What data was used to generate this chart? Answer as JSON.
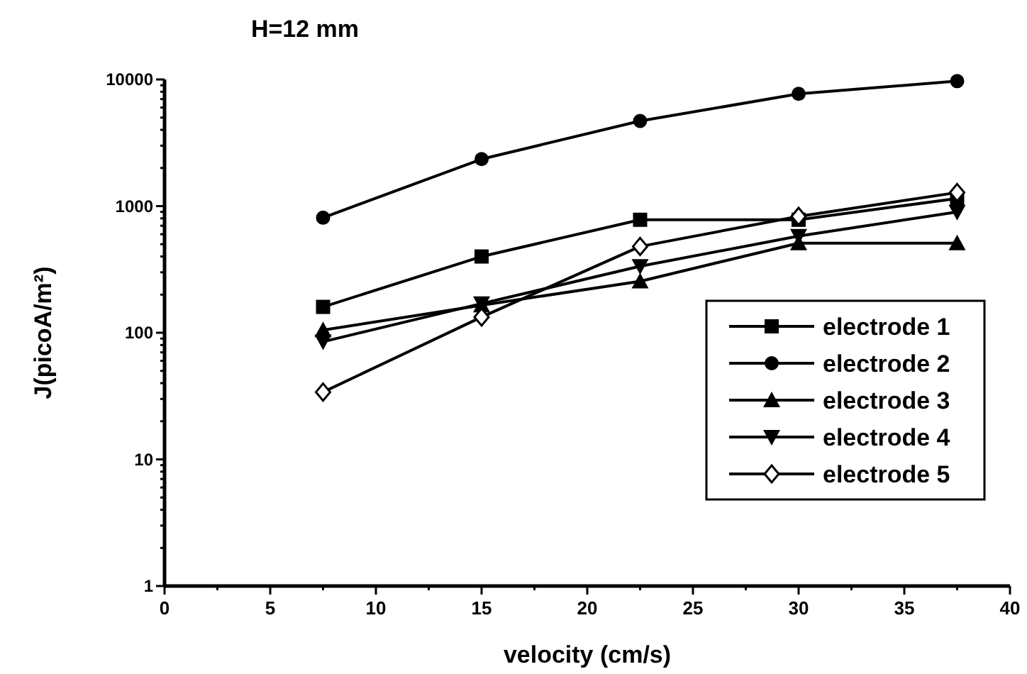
{
  "chart_data": {
    "type": "line",
    "title": "H=12 mm",
    "xlabel": "velocity (cm/s)",
    "ylabel": "J(picoA/m²)",
    "log": "y",
    "xlim": [
      0,
      40
    ],
    "ylim": [
      1,
      10000
    ],
    "xticks": [
      0,
      {
        "value": 2.5,
        "label": null
      },
      5,
      {
        "value": 7.5,
        "label": null
      },
      10,
      {
        "value": 12.5,
        "label": null
      },
      15,
      {
        "value": 17.5,
        "label": null
      },
      20,
      {
        "value": 22.5,
        "label": null
      },
      25,
      {
        "value": 27.5,
        "label": null
      },
      30,
      {
        "value": 32.5,
        "label": null
      },
      35,
      {
        "value": 37.5,
        "label": null
      },
      40
    ],
    "yticks": [
      1,
      {
        "value": 2,
        "label": null
      },
      {
        "value": 3,
        "label": null
      },
      {
        "value": 4,
        "label": null
      },
      {
        "value": 5,
        "label": null
      },
      {
        "value": 6,
        "label": null
      },
      {
        "value": 7,
        "label": null
      },
      {
        "value": 8,
        "label": null
      },
      {
        "value": 9,
        "label": null
      },
      10,
      {
        "value": 20,
        "label": null
      },
      {
        "value": 30,
        "label": null
      },
      {
        "value": 40,
        "label": null
      },
      {
        "value": 50,
        "label": null
      },
      {
        "value": 60,
        "label": null
      },
      {
        "value": 70,
        "label": null
      },
      {
        "value": 80,
        "label": null
      },
      {
        "value": 90,
        "label": null
      },
      100,
      {
        "value": 200,
        "label": null
      },
      {
        "value": 300,
        "label": null
      },
      {
        "value": 400,
        "label": null
      },
      {
        "value": 500,
        "label": null
      },
      {
        "value": 600,
        "label": null
      },
      {
        "value": 700,
        "label": null
      },
      {
        "value": 800,
        "label": null
      },
      {
        "value": 900,
        "label": null
      },
      1000,
      {
        "value": 2000,
        "label": null
      },
      {
        "value": 3000,
        "label": null
      },
      {
        "value": 4000,
        "label": null
      },
      {
        "value": 5000,
        "label": null
      },
      {
        "value": 6000,
        "label": null
      },
      {
        "value": 7000,
        "label": null
      },
      {
        "value": 8000,
        "label": null
      },
      {
        "value": 9000,
        "label": null
      },
      10000
    ],
    "x": [
      7.5,
      15,
      22.5,
      30,
      37.5
    ],
    "grid": false,
    "legend": "bottom right",
    "line_style": "solid",
    "series": [
      {
        "name": "electrode 1",
        "color": "#000000",
        "marker": "square",
        "values": [
          160,
          400,
          780,
          780,
          1150
        ]
      },
      {
        "name": "electrode 2",
        "color": "#000000",
        "marker": "circle",
        "values": [
          810,
          2350,
          4700,
          7700,
          9700
        ]
      },
      {
        "name": "electrode 3",
        "color": "#000000",
        "marker": "triangle",
        "values": [
          105,
          165,
          255,
          510,
          510
        ]
      },
      {
        "name": "electrode 4",
        "color": "#000000",
        "marker": "triangle-down",
        "values": [
          85,
          170,
          335,
          580,
          900
        ]
      },
      {
        "name": "electrode 5",
        "color": "#000000",
        "marker": "diamond-open",
        "values": [
          34,
          133,
          480,
          830,
          1280
        ]
      }
    ]
  }
}
